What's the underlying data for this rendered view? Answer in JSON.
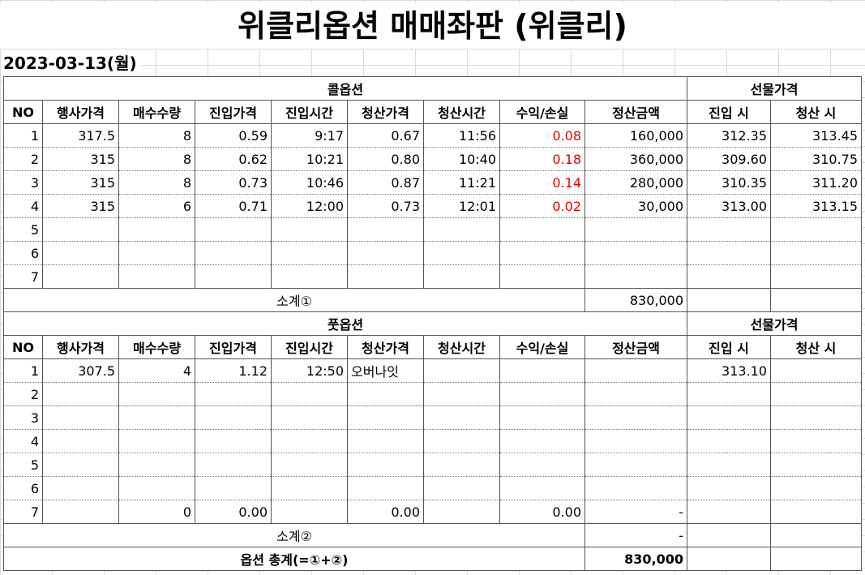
{
  "title": "위클리옵션 매매좌판 (위클리)",
  "date": "2023-03-13(월)",
  "call": {
    "section_label": "콜옵션",
    "futures_label": "선물가격",
    "headers": [
      "NO",
      "행사가격",
      "매수수량",
      "진입가격",
      "진입시간",
      "청산가격",
      "청산시간",
      "수익/손실",
      "정산금액",
      "진입 시",
      "청산 시"
    ],
    "rows": [
      [
        "1",
        "317.5",
        "8",
        "0.59",
        "9:17",
        "0.67",
        "11:56",
        "0.08",
        "160,000",
        "312.35",
        "313.45"
      ],
      [
        "2",
        "315",
        "8",
        "0.62",
        "10:21",
        "0.80",
        "10:40",
        "0.18",
        "360,000",
        "309.60",
        "310.75"
      ],
      [
        "3",
        "315",
        "8",
        "0.73",
        "10:46",
        "0.87",
        "11:21",
        "0.14",
        "280,000",
        "310.35",
        "311.20"
      ],
      [
        "4",
        "315",
        "6",
        "0.71",
        "12:00",
        "0.73",
        "12:01",
        "0.02",
        "30,000",
        "313.00",
        "313.15"
      ],
      [
        "5",
        "",
        "",
        "",
        "",
        "",
        "",
        "",
        "",
        "",
        ""
      ],
      [
        "6",
        "",
        "",
        "",
        "",
        "",
        "",
        "",
        "",
        "",
        ""
      ],
      [
        "7",
        "",
        "",
        "",
        "",
        "",
        "",
        "",
        "",
        "",
        ""
      ]
    ],
    "subtotal_label": "소계①",
    "subtotal_value": "830,000"
  },
  "put": {
    "section_label": "풋옵션",
    "futures_label": "선물가격",
    "headers": [
      "NO",
      "행사가격",
      "매수수량",
      "진입가격",
      "진입시간",
      "청산가격",
      "청산시간",
      "수익/손실",
      "정산금액",
      "진입 시",
      "청산 시"
    ],
    "rows": [
      [
        "1",
        "307.5",
        "4",
        "1.12",
        "12:50",
        "오버나잇",
        "",
        "",
        "",
        "313.10",
        ""
      ],
      [
        "2",
        "",
        "",
        "",
        "",
        "",
        "",
        "",
        "",
        "",
        ""
      ],
      [
        "3",
        "",
        "",
        "",
        "",
        "",
        "",
        "",
        "",
        "",
        ""
      ],
      [
        "4",
        "",
        "",
        "",
        "",
        "",
        "",
        "",
        "",
        "",
        ""
      ],
      [
        "5",
        "",
        "",
        "",
        "",
        "",
        "",
        "",
        "",
        "",
        ""
      ],
      [
        "6",
        "",
        "",
        "",
        "",
        "",
        "",
        "",
        "",
        "",
        ""
      ],
      [
        "7",
        "",
        "0",
        "0.00",
        "",
        "0.00",
        "",
        "0.00",
        "-",
        "",
        ""
      ]
    ],
    "subtotal_label": "소계②",
    "subtotal_value": "-"
  },
  "total_label": "옵션 총계(=①+②)",
  "total_value": "830,000",
  "colors": {
    "call_header_bg": "#fbe4d5",
    "put_header_bg": "#dde8f3",
    "profit_text": "#e60000"
  }
}
